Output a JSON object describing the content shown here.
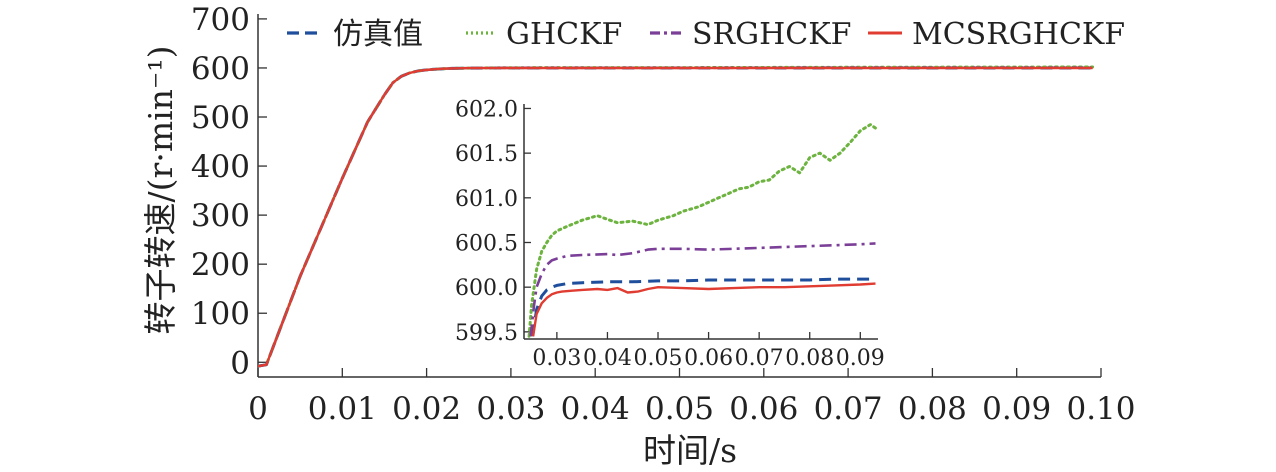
{
  "chart_data": [
    {
      "type": "line",
      "title": "",
      "xlabel": "时间/s",
      "ylabel": "转子转速/(r·min⁻¹)",
      "xlim": [
        0,
        0.1
      ],
      "ylim": [
        -30,
        710
      ],
      "xticks": [
        0,
        0.01,
        0.02,
        0.03,
        0.04,
        0.05,
        0.06,
        0.07,
        0.08,
        0.09,
        0.1
      ],
      "xtick_labels": [
        "0",
        "0.01",
        "0.02",
        "0.03",
        "0.04",
        "0.05",
        "0.06",
        "0.07",
        "0.08",
        "0.09",
        "0.10"
      ],
      "yticks": [
        0,
        100,
        200,
        300,
        400,
        500,
        600,
        700
      ],
      "ytick_labels": [
        "0",
        "100",
        "200",
        "300",
        "400",
        "500",
        "600",
        "700"
      ],
      "legend_position": "top",
      "grid": false,
      "series": [
        {
          "name": "仿真值",
          "color": "#1f4e9c",
          "dash": "dashed",
          "x": [
            0,
            0.001,
            0.005,
            0.01,
            0.013,
            0.015,
            0.016,
            0.017,
            0.018,
            0.019,
            0.02,
            0.021,
            0.022,
            0.023,
            0.025,
            0.03,
            0.05,
            0.07,
            0.09,
            0.099
          ],
          "y": [
            -8,
            -5,
            175,
            375,
            490,
            545,
            570,
            583,
            590,
            594,
            596,
            597.5,
            598.5,
            599.2,
            599.7,
            600,
            600,
            600,
            600,
            600
          ]
        },
        {
          "name": "GHCKF",
          "color": "#6db33f",
          "dash": "dotted",
          "x": [
            0,
            0.001,
            0.005,
            0.01,
            0.013,
            0.015,
            0.016,
            0.017,
            0.018,
            0.019,
            0.02,
            0.021,
            0.022,
            0.023,
            0.025,
            0.03,
            0.05,
            0.07,
            0.09,
            0.099
          ],
          "y": [
            -8,
            -5,
            175,
            375,
            490,
            545,
            570,
            583,
            590,
            594,
            596,
            597.5,
            598.5,
            599.2,
            599.7,
            600.5,
            600.8,
            601.3,
            601.8,
            601.9
          ]
        },
        {
          "name": "SRGHCKF",
          "color": "#7b3f98",
          "dash": "dashdot",
          "x": [
            0,
            0.001,
            0.005,
            0.01,
            0.013,
            0.015,
            0.016,
            0.017,
            0.018,
            0.019,
            0.02,
            0.021,
            0.022,
            0.023,
            0.025,
            0.03,
            0.05,
            0.07,
            0.09,
            0.099
          ],
          "y": [
            -8,
            -5,
            175,
            375,
            490,
            545,
            570,
            583,
            590,
            594,
            596,
            597.5,
            598.5,
            599.2,
            599.7,
            600.3,
            600.4,
            600.45,
            600.5,
            600.5
          ]
        },
        {
          "name": "MCSRGHCKF",
          "color": "#e03c31",
          "dash": "solid",
          "x": [
            0,
            0.001,
            0.005,
            0.01,
            0.013,
            0.015,
            0.016,
            0.017,
            0.018,
            0.019,
            0.02,
            0.021,
            0.022,
            0.023,
            0.025,
            0.03,
            0.05,
            0.07,
            0.09,
            0.099
          ],
          "y": [
            -8,
            -5,
            175,
            375,
            490,
            545,
            570,
            583,
            590,
            594,
            596,
            597.5,
            598.5,
            599.2,
            599.7,
            599.95,
            600,
            600,
            600,
            600
          ]
        }
      ]
    },
    {
      "type": "line",
      "title": "",
      "xlabel": "",
      "ylabel": "",
      "xlim": [
        0.0235,
        0.0935
      ],
      "ylim": [
        599.42,
        602.05
      ],
      "xticks": [
        0.03,
        0.04,
        0.05,
        0.06,
        0.07,
        0.08,
        0.09
      ],
      "xtick_labels": [
        "0.03",
        "0.04",
        "0.05",
        "0.06",
        "0.07",
        "0.08",
        "0.09"
      ],
      "yticks": [
        599.5,
        600.0,
        600.5,
        601.0,
        601.5,
        602.0
      ],
      "ytick_labels": [
        "599.5",
        "600.0",
        "600.5",
        "601.0",
        "601.5",
        "602.0"
      ],
      "grid": false,
      "series": [
        {
          "name": "仿真值",
          "color": "#1f4e9c",
          "dash": "dashed",
          "x": [
            0.0252,
            0.026,
            0.027,
            0.028,
            0.029,
            0.03,
            0.032,
            0.035,
            0.04,
            0.045,
            0.05,
            0.055,
            0.06,
            0.065,
            0.07,
            0.075,
            0.08,
            0.085,
            0.09,
            0.093
          ],
          "y": [
            599.45,
            599.75,
            599.9,
            599.97,
            600.0,
            600.02,
            600.04,
            600.05,
            600.06,
            600.06,
            600.07,
            600.07,
            600.08,
            600.08,
            600.08,
            600.08,
            600.08,
            600.09,
            600.09,
            600.09
          ]
        },
        {
          "name": "GHCKF",
          "color": "#6db33f",
          "dash": "dotted",
          "x": [
            0.0245,
            0.025,
            0.026,
            0.027,
            0.028,
            0.029,
            0.03,
            0.032,
            0.035,
            0.038,
            0.04,
            0.042,
            0.045,
            0.048,
            0.05,
            0.053,
            0.055,
            0.058,
            0.06,
            0.062,
            0.064,
            0.066,
            0.068,
            0.07,
            0.072,
            0.074,
            0.076,
            0.078,
            0.08,
            0.082,
            0.084,
            0.086,
            0.088,
            0.09,
            0.092,
            0.093
          ],
          "y": [
            599.45,
            599.8,
            600.2,
            600.4,
            600.5,
            600.58,
            600.63,
            600.68,
            600.75,
            600.8,
            600.76,
            600.72,
            600.74,
            600.7,
            600.75,
            600.8,
            600.85,
            600.9,
            600.95,
            601.0,
            601.05,
            601.1,
            601.12,
            601.18,
            601.2,
            601.3,
            601.35,
            601.28,
            601.45,
            601.5,
            601.42,
            601.5,
            601.62,
            601.75,
            601.82,
            601.78
          ]
        },
        {
          "name": "SRGHCKF",
          "color": "#7b3f98",
          "dash": "dashdot",
          "x": [
            0.0248,
            0.0255,
            0.026,
            0.027,
            0.028,
            0.029,
            0.03,
            0.032,
            0.035,
            0.04,
            0.042,
            0.045,
            0.048,
            0.05,
            0.055,
            0.06,
            0.065,
            0.07,
            0.075,
            0.08,
            0.085,
            0.09,
            0.093
          ],
          "y": [
            599.45,
            599.8,
            600.0,
            600.15,
            600.25,
            600.3,
            600.32,
            600.35,
            600.36,
            600.37,
            600.36,
            600.38,
            600.42,
            600.43,
            600.43,
            600.42,
            600.43,
            600.44,
            600.45,
            600.46,
            600.47,
            600.48,
            600.49
          ]
        },
        {
          "name": "MCSRGHCKF",
          "color": "#e03c31",
          "dash": "solid",
          "x": [
            0.0253,
            0.026,
            0.027,
            0.028,
            0.029,
            0.03,
            0.031,
            0.033,
            0.035,
            0.038,
            0.04,
            0.042,
            0.044,
            0.046,
            0.048,
            0.05,
            0.055,
            0.06,
            0.065,
            0.07,
            0.075,
            0.08,
            0.085,
            0.09,
            0.093
          ],
          "y": [
            599.45,
            599.7,
            599.82,
            599.88,
            599.92,
            599.94,
            599.95,
            599.96,
            599.97,
            599.98,
            599.97,
            599.99,
            599.94,
            599.95,
            599.98,
            600.0,
            599.99,
            599.98,
            599.99,
            600.0,
            600.0,
            600.01,
            600.02,
            600.03,
            600.04
          ]
        }
      ]
    }
  ]
}
